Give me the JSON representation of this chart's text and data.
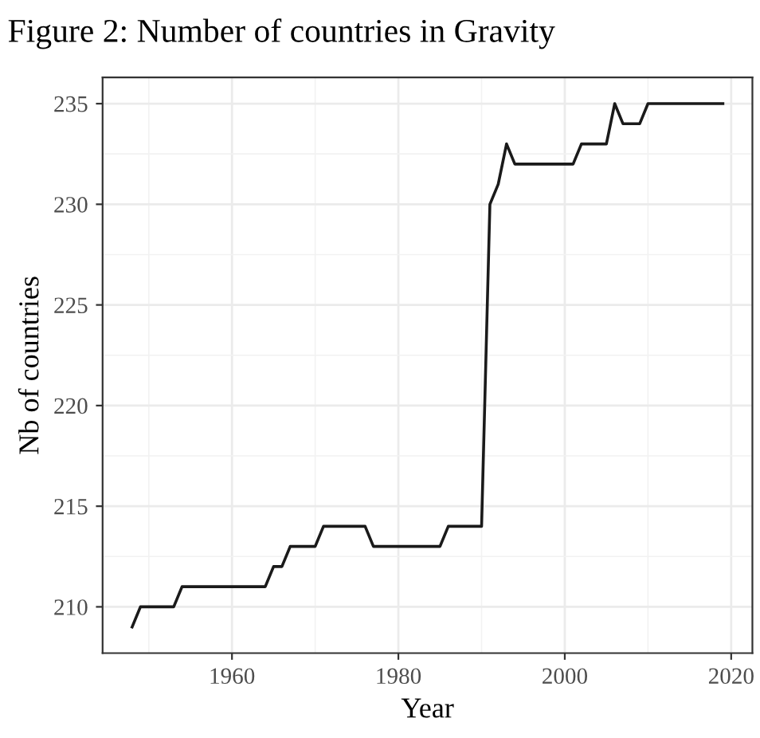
{
  "chart_data": {
    "type": "line",
    "title": "Figure 2: Number of countries in Gravity",
    "xlabel": "Year",
    "ylabel": "Nb of countries",
    "x": [
      1948,
      1949,
      1950,
      1951,
      1952,
      1953,
      1954,
      1955,
      1956,
      1957,
      1958,
      1959,
      1960,
      1961,
      1962,
      1963,
      1964,
      1965,
      1966,
      1967,
      1968,
      1969,
      1970,
      1971,
      1972,
      1973,
      1974,
      1975,
      1976,
      1977,
      1978,
      1979,
      1980,
      1981,
      1982,
      1983,
      1984,
      1985,
      1986,
      1987,
      1988,
      1989,
      1990,
      1991,
      1992,
      1993,
      1994,
      1995,
      1996,
      1997,
      1998,
      1999,
      2000,
      2001,
      2002,
      2003,
      2004,
      2005,
      2006,
      2007,
      2008,
      2009,
      2010,
      2011,
      2012,
      2013,
      2014,
      2015,
      2016,
      2017,
      2018,
      2019
    ],
    "series": [
      {
        "color": "#1a1a1a",
        "values": [
          209,
          210,
          210,
          210,
          210,
          210,
          211,
          211,
          211,
          211,
          211,
          211,
          211,
          211,
          211,
          211,
          211,
          212,
          212,
          213,
          213,
          213,
          213,
          214,
          214,
          214,
          214,
          214,
          214,
          213,
          213,
          213,
          213,
          213,
          213,
          213,
          213,
          213,
          214,
          214,
          214,
          214,
          214,
          230,
          231,
          233,
          232,
          232,
          232,
          232,
          232,
          232,
          232,
          232,
          233,
          233,
          233,
          233,
          235,
          234,
          234,
          234,
          235,
          235,
          235,
          235,
          235,
          235,
          235,
          235,
          235,
          235
        ]
      }
    ],
    "xlim": [
      1944.45,
      2022.55
    ],
    "ylim": [
      207.7,
      236.3
    ],
    "xticks": [
      1960,
      1980,
      2000,
      2020
    ],
    "yticks": [
      210,
      215,
      220,
      225,
      230,
      235
    ],
    "grid": true,
    "legend": false,
    "line_style": "solid",
    "marker": "none"
  }
}
